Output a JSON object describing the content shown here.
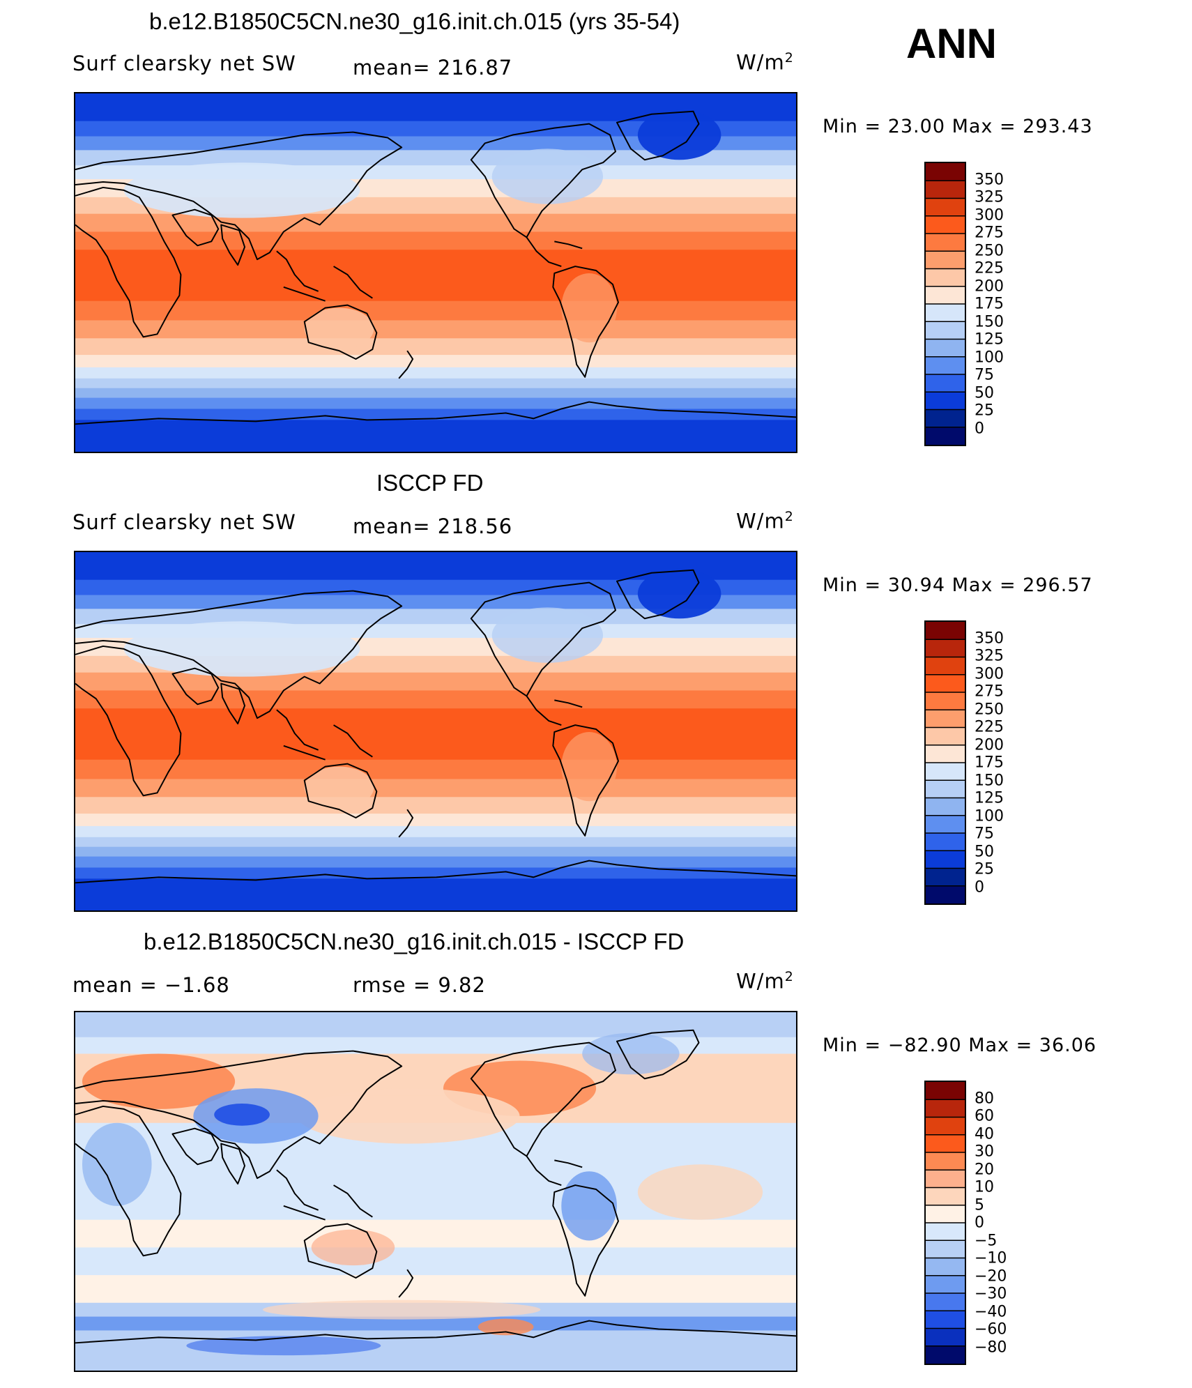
{
  "season": "ANN",
  "panels": [
    {
      "title": "b.e12.B1850C5CN.ne30_g16.init.ch.015 (yrs 35-54)",
      "variable": "Surf clearsky net SW",
      "stat_text": "mean=  216.87",
      "units_base": "W/m",
      "units_exp": "2",
      "minmax": "Min  =    23.00  Max  =  293.43",
      "colorbar_labels": [
        "350",
        "325",
        "300",
        "275",
        "250",
        "225",
        "200",
        "175",
        "150",
        "125",
        "100",
        "75",
        "50",
        "25",
        "0"
      ]
    },
    {
      "title": "ISCCP FD",
      "variable": "Surf clearsky net SW",
      "stat_text": "mean=  218.56",
      "units_base": "W/m",
      "units_exp": "2",
      "minmax": "Min  =    30.94  Max  =  296.57",
      "colorbar_labels": [
        "350",
        "325",
        "300",
        "275",
        "250",
        "225",
        "200",
        "175",
        "150",
        "125",
        "100",
        "75",
        "50",
        "25",
        "0"
      ]
    },
    {
      "title": "b.e12.B1850C5CN.ne30_g16.init.ch.015 - ISCCP FD",
      "mean_text": "mean  =    −1.68",
      "rmse_text": "rmse  =      9.82",
      "units_base": "W/m",
      "units_exp": "2",
      "minmax": "Min  =  −82.90  Max  =     36.06",
      "colorbar_labels": [
        "80",
        "60",
        "40",
        "30",
        "20",
        "10",
        "5",
        "0",
        "−5",
        "−10",
        "−20",
        "−30",
        "−40",
        "−60",
        "−80"
      ]
    }
  ],
  "colors": {
    "abs_scale": [
      "#7a0403",
      "#b8260c",
      "#e0420f",
      "#fc5a1c",
      "#fd7a40",
      "#fd9e6d",
      "#fdc8a8",
      "#fde6d6",
      "#d6e6fa",
      "#b6cff5",
      "#8fb4f0",
      "#5e8ff0",
      "#2f63ea",
      "#0b3cd9",
      "#00238f",
      "#000a6b"
    ],
    "diff_scale": [
      "#7a0403",
      "#b8260c",
      "#e0420f",
      "#fc5a1c",
      "#fd8a53",
      "#fdb08d",
      "#fdd6bc",
      "#fff2e6",
      "#d8e8fb",
      "#b8d0f5",
      "#95b8f1",
      "#6e9bf0",
      "#4878ee",
      "#1f4fe4",
      "#0a30be",
      "#000a6b"
    ],
    "coast": "#000000"
  }
}
